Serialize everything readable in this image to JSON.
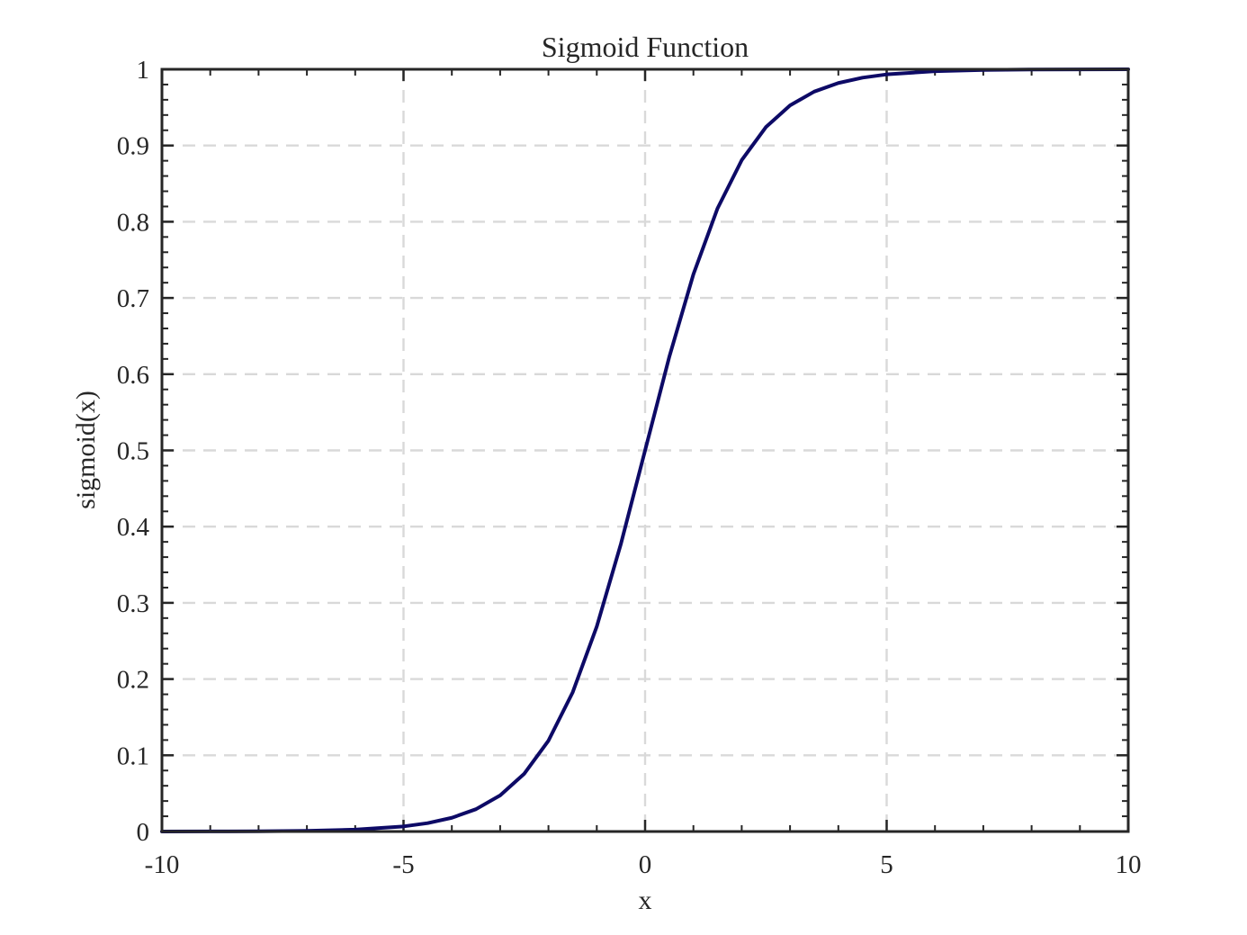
{
  "chart_data": {
    "type": "line",
    "title": "Sigmoid Function",
    "xlabel": "x",
    "ylabel": "sigmoid(x)",
    "xlim": [
      -10,
      10
    ],
    "ylim": [
      0,
      1
    ],
    "grid": true,
    "x_ticks": [
      -10,
      -5,
      0,
      5,
      10
    ],
    "x_tick_labels": [
      "-10",
      "-5",
      "0",
      "5",
      "10"
    ],
    "y_ticks": [
      0,
      0.1,
      0.2,
      0.3,
      0.4,
      0.5,
      0.6,
      0.7,
      0.8,
      0.9,
      1
    ],
    "y_tick_labels": [
      "0",
      "0.1",
      "0.2",
      "0.3",
      "0.4",
      "0.5",
      "0.6",
      "0.7",
      "0.8",
      "0.9",
      "1"
    ],
    "series": [
      {
        "color": "#0d0a66",
        "x": [
          -10,
          -9,
          -8,
          -7,
          -6,
          -5,
          -4.5,
          -4,
          -3.5,
          -3,
          -2.5,
          -2,
          -1.5,
          -1,
          -0.5,
          0,
          0.5,
          1,
          1.5,
          2,
          2.5,
          3,
          3.5,
          4,
          4.5,
          5,
          6,
          7,
          8,
          9,
          10
        ],
        "y": [
          4.54e-05,
          0.000123,
          0.000335,
          0.000911,
          0.00247,
          0.00669,
          0.011,
          0.018,
          0.0293,
          0.0474,
          0.0759,
          0.1192,
          0.1824,
          0.2689,
          0.3775,
          0.5,
          0.6225,
          0.7311,
          0.8176,
          0.8808,
          0.9241,
          0.9526,
          0.9707,
          0.982,
          0.989,
          0.9933,
          0.9975,
          0.9991,
          0.9997,
          0.99988,
          0.99995
        ]
      }
    ]
  }
}
